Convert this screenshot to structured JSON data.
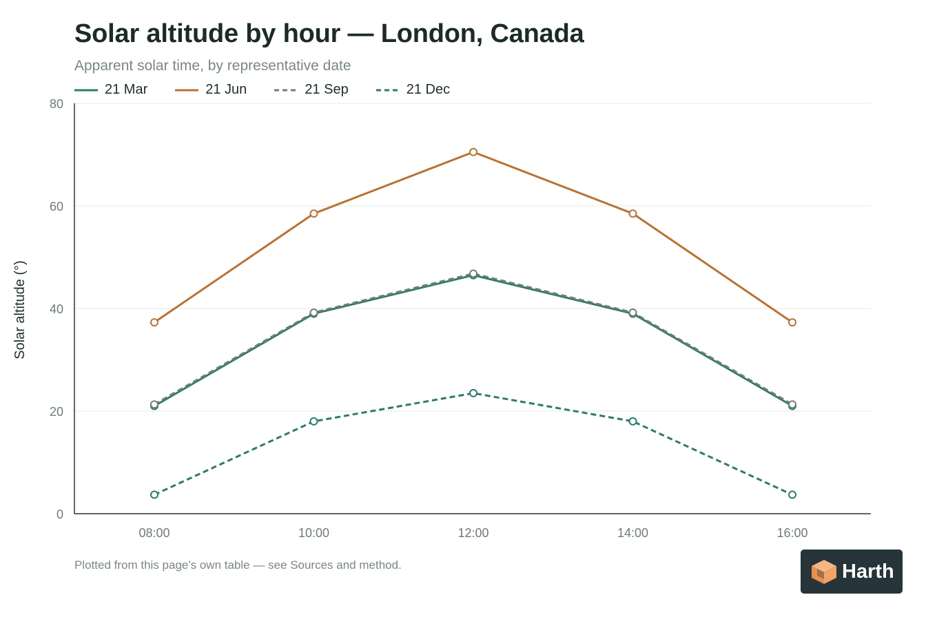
{
  "title": "Solar altitude by hour — London, Canada",
  "subtitle": "Apparent solar time, by representative date",
  "footnote": "Plotted from this page's own table — see Sources and method.",
  "logo": {
    "text": "Harth",
    "icon": "cube-logo-icon"
  },
  "colors": {
    "teal": "#2e7a6c",
    "orange": "#b87333",
    "gray": "#6f7b78"
  },
  "chart_data": {
    "type": "line",
    "title": "Solar altitude by hour — London, Canada",
    "subtitle": "Apparent solar time, by representative date",
    "xlabel": "",
    "ylabel": "Solar altitude (°)",
    "categories": [
      "08:00",
      "10:00",
      "12:00",
      "14:00",
      "16:00"
    ],
    "ylim": [
      0,
      80
    ],
    "yticks": [
      0,
      20,
      40,
      60,
      80
    ],
    "grid": true,
    "legend_position": "top-left",
    "series": [
      {
        "name": "21 Mar",
        "values": [
          21.0,
          39.0,
          46.5,
          39.0,
          21.0
        ],
        "color": "#2e7a6c",
        "dash": "solid"
      },
      {
        "name": "21 Jun",
        "values": [
          37.3,
          58.5,
          70.5,
          58.5,
          37.3
        ],
        "color": "#b87333",
        "dash": "solid"
      },
      {
        "name": "21 Sep",
        "values": [
          21.3,
          39.2,
          46.8,
          39.2,
          21.3
        ],
        "color": "#6f7b78",
        "dash": "dashed"
      },
      {
        "name": "21 Dec",
        "values": [
          3.7,
          18.0,
          23.5,
          18.0,
          3.7
        ],
        "color": "#2e7a6c",
        "dash": "dashed"
      }
    ]
  }
}
